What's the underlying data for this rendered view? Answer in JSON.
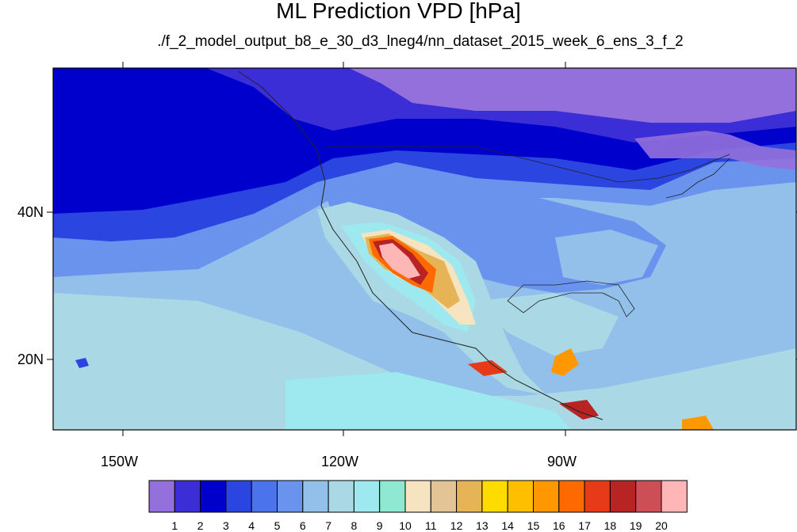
{
  "title": "ML Prediction VPD [hPa]",
  "subtitle": "./f_2_model_output_b8_e_30_d3_lneg4/nn_dataset_2015_week_6_ens_3_f_2",
  "axes": {
    "lat_labels": [
      "40N",
      "20N"
    ],
    "lon_labels": [
      "150W",
      "120W",
      "90W"
    ]
  },
  "colorbar": {
    "colors": [
      "#9370db",
      "#3b2ed6",
      "#0000cd",
      "#2b45e0",
      "#4a73ec",
      "#6a93ee",
      "#92c0ea",
      "#aad8e4",
      "#9ee8ef",
      "#8ee8d2",
      "#f5e4bf",
      "#e2c496",
      "#e6b456",
      "#ffdc00",
      "#ffbf00",
      "#ff9800",
      "#ff6a00",
      "#e63a18",
      "#b82323",
      "#cc4f55",
      "#ffb6b6"
    ],
    "labels": [
      "1",
      "2",
      "3",
      "4",
      "5",
      "6",
      "7",
      "8",
      "9",
      "10",
      "11",
      "12",
      "13",
      "14",
      "15",
      "16",
      "17",
      "18",
      "19",
      "20"
    ]
  }
}
